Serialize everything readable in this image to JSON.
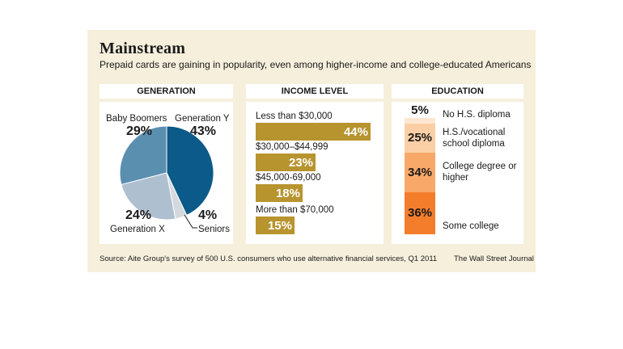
{
  "header": {
    "title": "Mainstream",
    "subtitle": "Prepaid cards are gaining in popularity, even among higher-income and college-educated Americans"
  },
  "panels": {
    "generation": "GENERATION",
    "income": "INCOME LEVEL",
    "education": "EDUCATION"
  },
  "colors": {
    "background": "#f6efdc",
    "gen_y": "#0b5a89",
    "boomers": "#5a8fb0",
    "gen_x": "#aebfd0",
    "seniors": "#d4d9de",
    "income_bar": "#b8942f",
    "edu_no_hs": "#fde7d2",
    "edu_hs": "#fbcfa5",
    "edu_degree": "#f8a868",
    "edu_some_college": "#f47d2c"
  },
  "chart_data": [
    {
      "type": "pie",
      "title": "GENERATION",
      "slices": [
        {
          "name": "Generation Y",
          "value": 43,
          "label": "43%"
        },
        {
          "name": "Seniors",
          "value": 4,
          "label": "4%"
        },
        {
          "name": "Generation X",
          "value": 24,
          "label": "24%"
        },
        {
          "name": "Baby Boomers",
          "value": 29,
          "label": "29%"
        }
      ]
    },
    {
      "type": "bar",
      "title": "INCOME LEVEL",
      "categories": [
        "Less than $30,000",
        "$30,000–$44,999",
        "$45,000-69,000",
        "More than $70,000"
      ],
      "values": [
        44,
        23,
        18,
        15
      ],
      "labels": [
        "44%",
        "23%",
        "18%",
        "15%"
      ]
    },
    {
      "type": "bar",
      "title": "EDUCATION",
      "stacked": true,
      "categories": [
        "No H.S. diploma",
        "H.S./vocational school diploma",
        "College degree or higher",
        "Some college"
      ],
      "values": [
        5,
        25,
        34,
        36
      ],
      "labels": [
        "5%",
        "25%",
        "34%",
        "36%"
      ]
    }
  ],
  "footer": {
    "source": "Source: Aite Group's survey of 500 U.S. consumers who use alternative financial services, Q1 2011",
    "credit": "The Wall Street Journal"
  }
}
